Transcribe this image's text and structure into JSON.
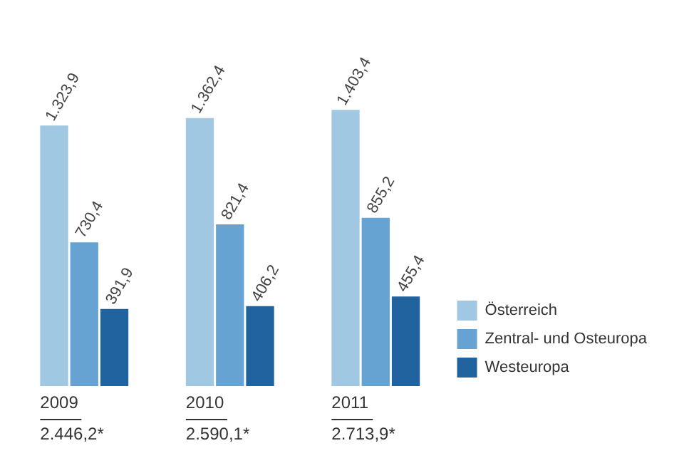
{
  "chart_data": {
    "type": "bar",
    "categories": [
      "2009",
      "2010",
      "2011"
    ],
    "series": [
      {
        "name": "Österreich",
        "color": "#a0c8e2",
        "values": [
          1323.9,
          1362.4,
          1403.4
        ],
        "value_labels": [
          "1.323,9",
          "1.362,4",
          "1.403,4"
        ]
      },
      {
        "name": "Zentral- und Osteuropa",
        "color": "#66a3d3",
        "values": [
          730.4,
          821.4,
          855.2
        ],
        "value_labels": [
          "730,4",
          "821,4",
          "855,2"
        ]
      },
      {
        "name": "Westeuropa",
        "color": "#20639f",
        "values": [
          391.9,
          406.2,
          455.4
        ],
        "value_labels": [
          "391,9",
          "406,2",
          "455,4"
        ]
      }
    ],
    "totals": [
      "2.446,2*",
      "2.590,1*",
      "2.713,9*"
    ],
    "legend": "right"
  }
}
